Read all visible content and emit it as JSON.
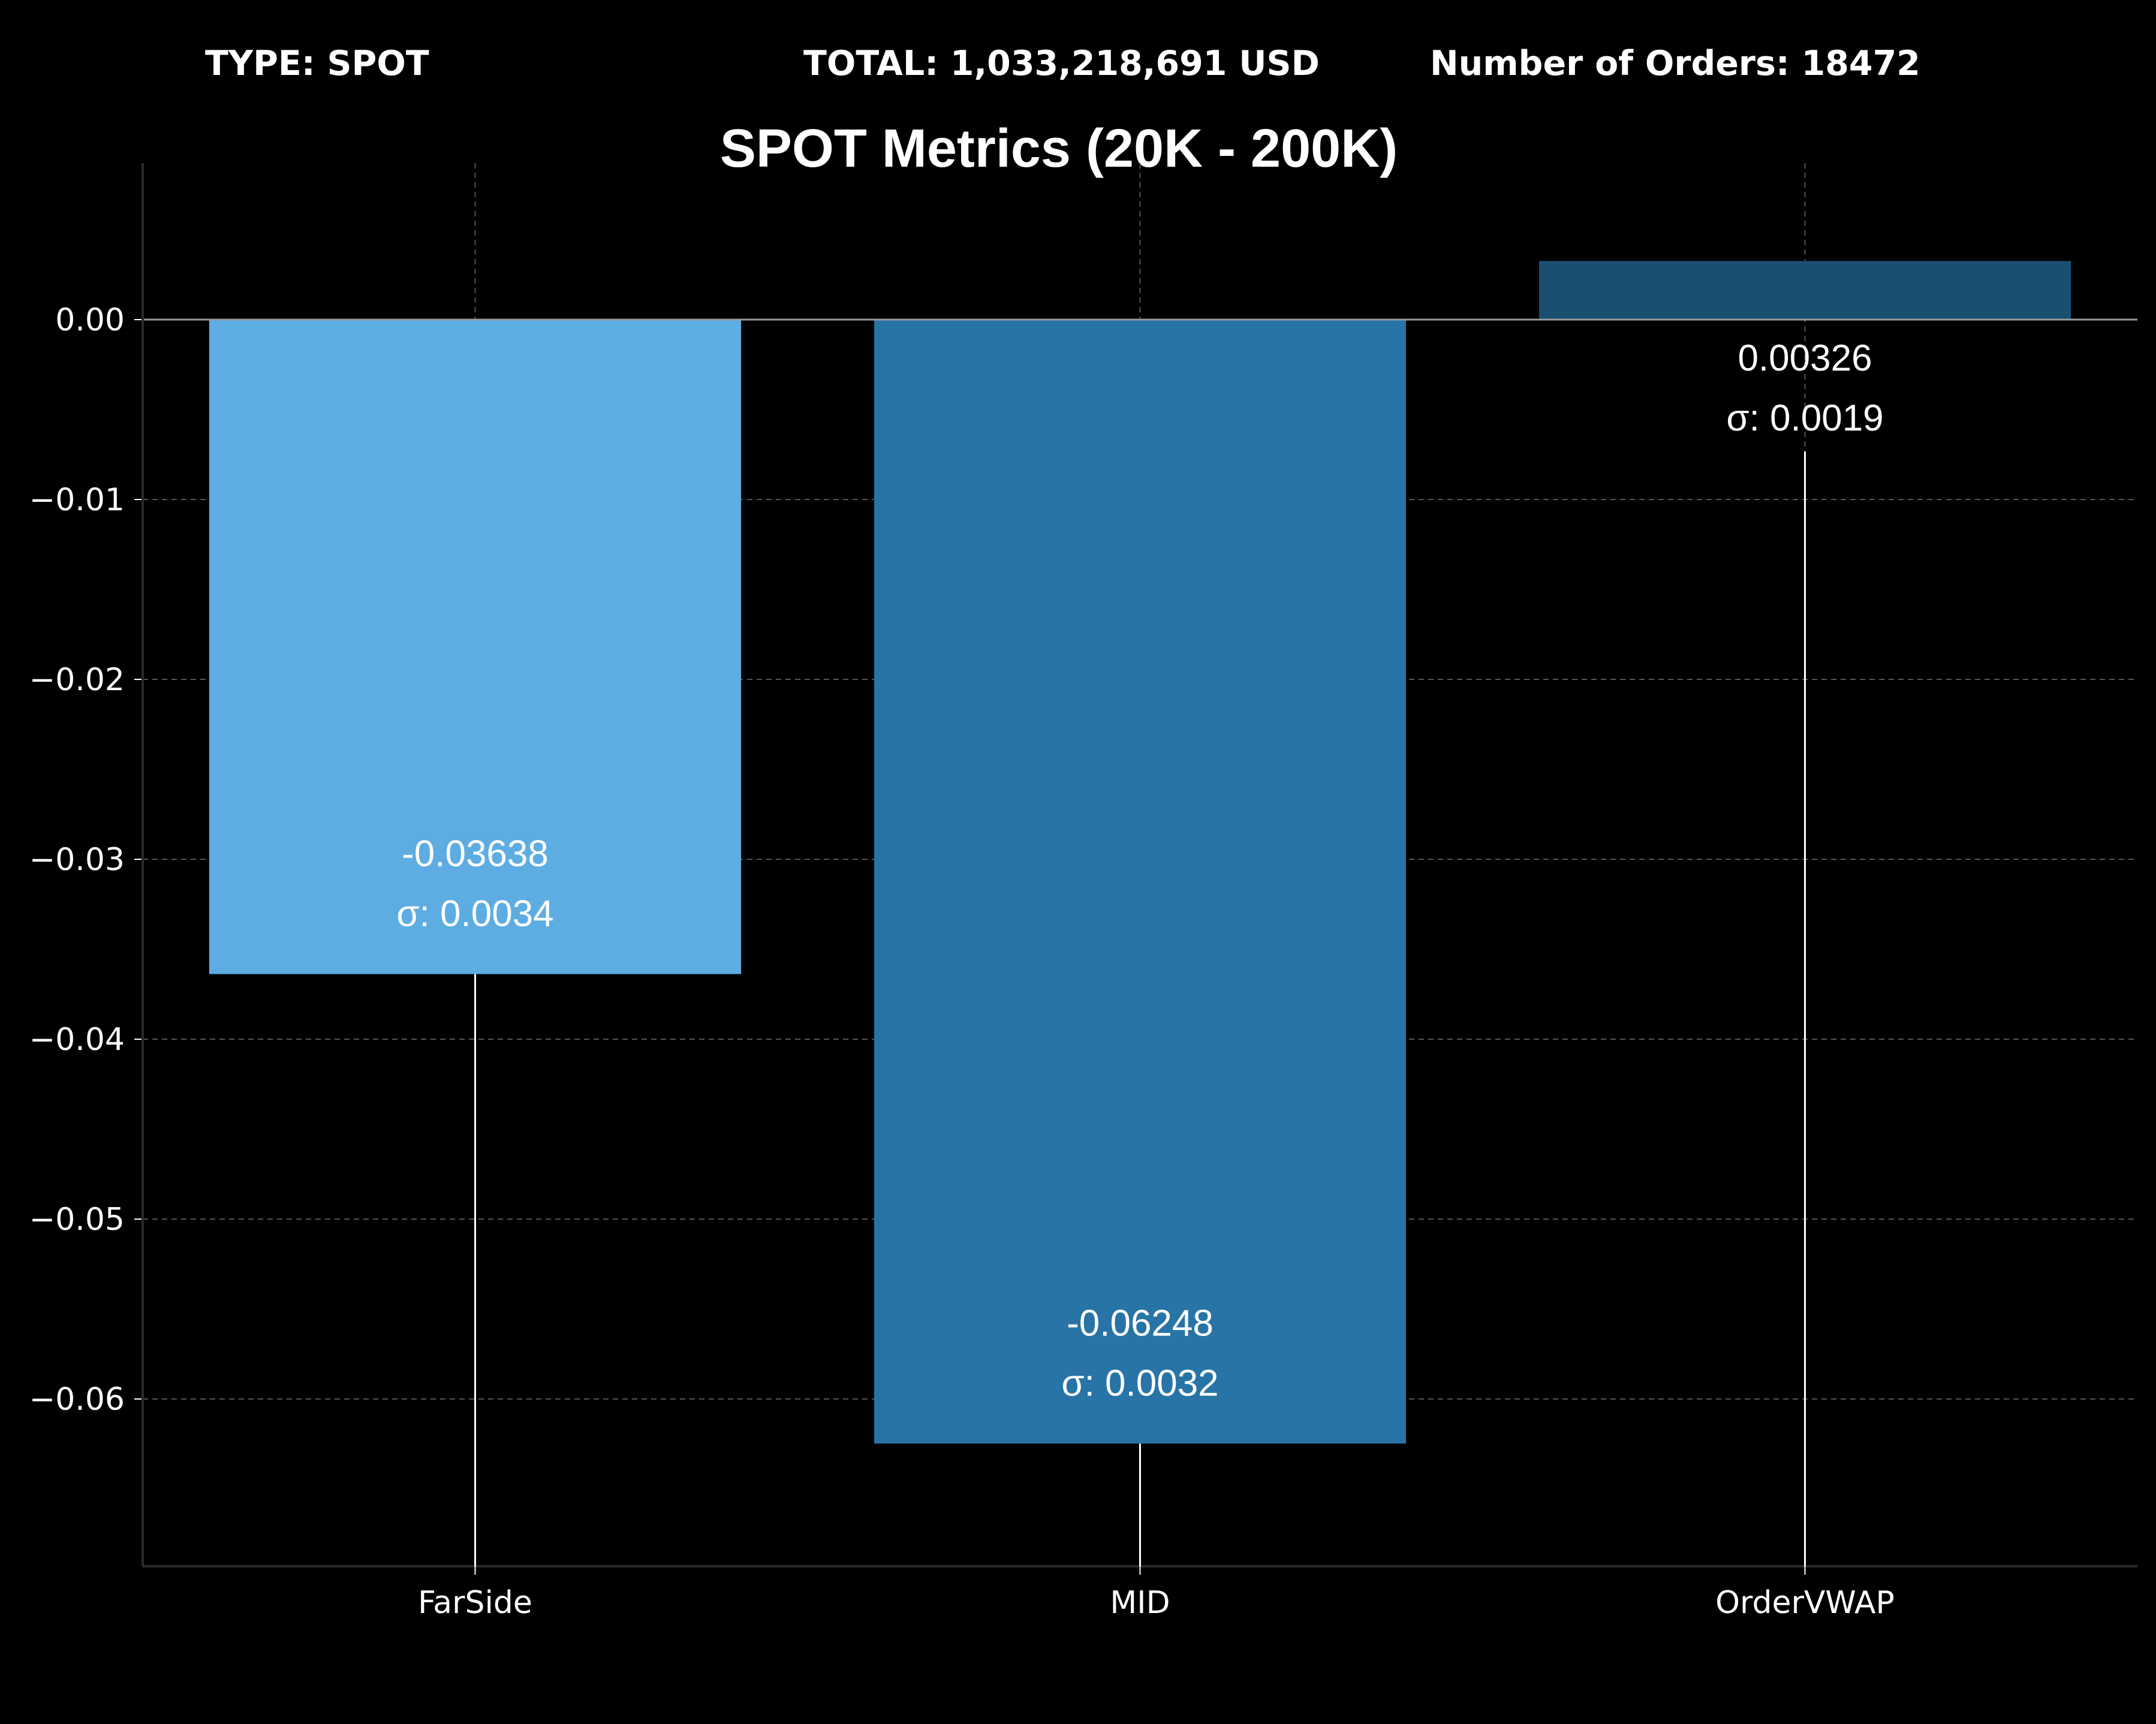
{
  "header": {
    "type_label": "TYPE: SPOT",
    "total_label": "TOTAL: 1,033,218,691 USD",
    "orders_label": "Number of Orders: 18472"
  },
  "colors": {
    "background": "#000000",
    "text": "#ffffff",
    "grid": "#555555",
    "axis": "#2a2a2a",
    "zero_line": "#9a9a9a",
    "error_bar": "#ffffff"
  },
  "chart_data": {
    "type": "bar",
    "title": "SPOT Metrics (20K - 200K)",
    "xlabel": "",
    "ylabel": "",
    "categories": [
      "FarSide",
      "MID",
      "OrderVWAP"
    ],
    "values": [
      -0.03638,
      -0.06248,
      0.00326
    ],
    "value_labels": [
      "-0.03638",
      "-0.06248",
      "0.00326"
    ],
    "std": [
      0.0034,
      0.0032,
      0.0019
    ],
    "std_labels": [
      "σ: 0.0034",
      "σ: 0.0032",
      "σ: 0.0019"
    ],
    "bar_colors": [
      "#5dade2",
      "#2874a6",
      "#1b4f72"
    ],
    "ylim": [
      -0.0693,
      0.0087
    ],
    "yticks": [
      0.0,
      -0.01,
      -0.02,
      -0.03,
      -0.04,
      -0.05,
      -0.06
    ],
    "ytick_labels": [
      "0.00",
      "−0.01",
      "−0.02",
      "−0.03",
      "−0.04",
      "−0.05",
      "−0.06"
    ],
    "grid": true,
    "grid_style": "dashed",
    "legend": "none"
  }
}
